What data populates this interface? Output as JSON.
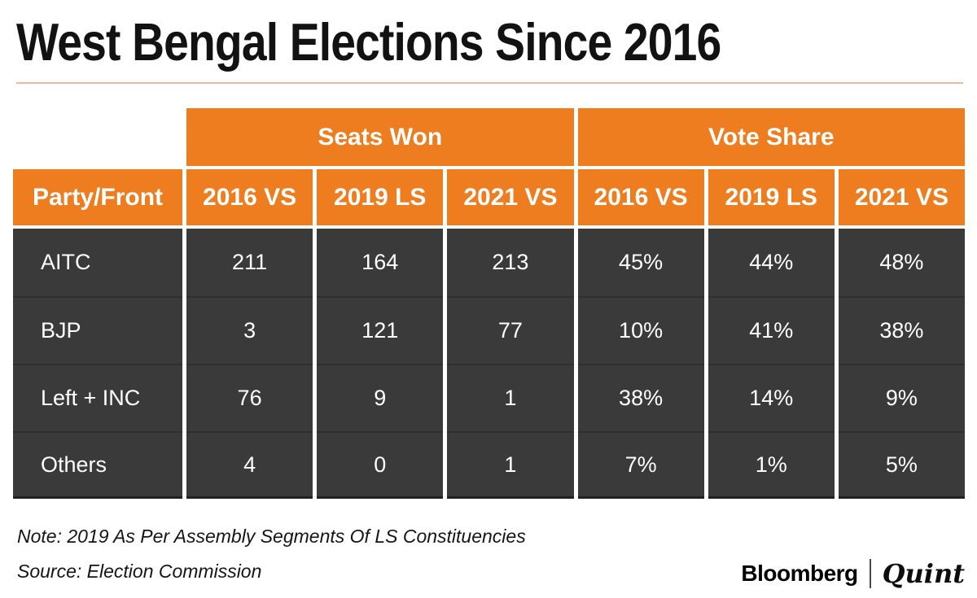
{
  "title": "West Bengal Elections Since 2016",
  "table": {
    "group_headers": [
      {
        "label": "Seats Won"
      },
      {
        "label": "Vote Share"
      }
    ],
    "corner_label": "Party/Front",
    "columns": [
      "2016 VS",
      "2019 LS",
      "2021 VS",
      "2016 VS",
      "2019 LS",
      "2021 VS"
    ],
    "rows": [
      {
        "party": "AITC",
        "values": [
          "211",
          "164",
          "213",
          "45%",
          "44%",
          "48%"
        ]
      },
      {
        "party": "BJP",
        "values": [
          "3",
          "121",
          "77",
          "10%",
          "41%",
          "38%"
        ]
      },
      {
        "party": "Left + INC",
        "values": [
          "76",
          "9",
          "1",
          "38%",
          "14%",
          "9%"
        ]
      },
      {
        "party": "Others",
        "values": [
          "4",
          "0",
          "1",
          "7%",
          "1%",
          "5%"
        ]
      }
    ]
  },
  "note": "Note: 2019 As Per Assembly Segments Of LS Constituencies",
  "source": "Source: Election Commission",
  "footer": {
    "brand_left": "Bloomberg",
    "brand_right": "Quint"
  },
  "colors": {
    "accent": "#EE7D1F",
    "cell_dark": "#3A3A3A",
    "title_rule": "#F1B797"
  },
  "chart_data": {
    "type": "table",
    "title": "West Bengal Elections Since 2016",
    "column_groups": [
      {
        "label": "Seats Won",
        "columns": [
          "2016 VS",
          "2019 LS",
          "2021 VS"
        ]
      },
      {
        "label": "Vote Share",
        "columns": [
          "2016 VS",
          "2019 LS",
          "2021 VS"
        ]
      }
    ],
    "row_header": "Party/Front",
    "rows": [
      {
        "party": "AITC",
        "seats_won": {
          "2016 VS": 211,
          "2019 LS": 164,
          "2021 VS": 213
        },
        "vote_share": {
          "2016 VS": "45%",
          "2019 LS": "44%",
          "2021 VS": "48%"
        }
      },
      {
        "party": "BJP",
        "seats_won": {
          "2016 VS": 3,
          "2019 LS": 121,
          "2021 VS": 77
        },
        "vote_share": {
          "2016 VS": "10%",
          "2019 LS": "41%",
          "2021 VS": "38%"
        }
      },
      {
        "party": "Left + INC",
        "seats_won": {
          "2016 VS": 76,
          "2019 LS": 9,
          "2021 VS": 1
        },
        "vote_share": {
          "2016 VS": "38%",
          "2019 LS": "14%",
          "2021 VS": "9%"
        }
      },
      {
        "party": "Others",
        "seats_won": {
          "2016 VS": 4,
          "2019 LS": 0,
          "2021 VS": 1
        },
        "vote_share": {
          "2016 VS": "7%",
          "2019 LS": "1%",
          "2021 VS": "5%"
        }
      }
    ],
    "note": "Note: 2019 As Per Assembly Segments Of LS Constituencies",
    "source": "Source: Election Commission"
  }
}
